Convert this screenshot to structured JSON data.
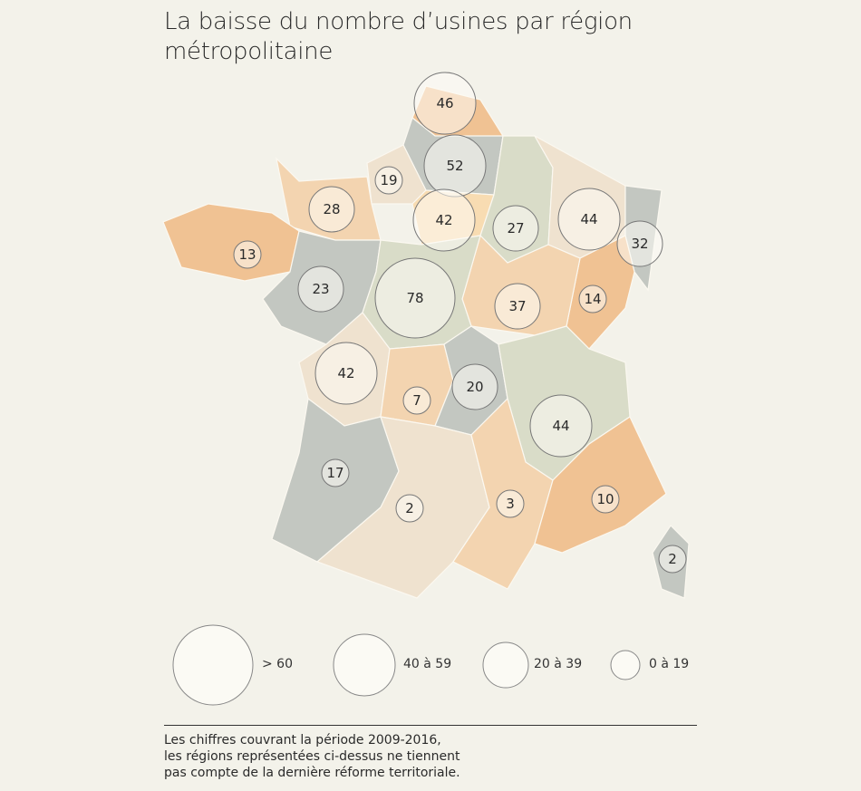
{
  "title": "La baisse du nombre d’usines par région métropolitaine",
  "palette": {
    "background": "#f3f2ea",
    "orange": "#f0c293",
    "peach": "#f3d4b0",
    "beige": "#efe2cf",
    "sage": "#d9dcc8",
    "grey": "#c3c7c1",
    "bubble_fill": "#fbfaf4"
  },
  "bubbles": [
    {
      "value": "46"
    },
    {
      "value": "52"
    },
    {
      "value": "19"
    },
    {
      "value": "28"
    },
    {
      "value": "42"
    },
    {
      "value": "27"
    },
    {
      "value": "44"
    },
    {
      "value": "32"
    },
    {
      "value": "13"
    },
    {
      "value": "23"
    },
    {
      "value": "78"
    },
    {
      "value": "37"
    },
    {
      "value": "14"
    },
    {
      "value": "42"
    },
    {
      "value": "7"
    },
    {
      "value": "20"
    },
    {
      "value": "44"
    },
    {
      "value": "17"
    },
    {
      "value": "2"
    },
    {
      "value": "3"
    },
    {
      "value": "10"
    },
    {
      "value": "2"
    }
  ],
  "legend": [
    {
      "label": "> 60"
    },
    {
      "label": "40 à 59"
    },
    {
      "label": "20 à 39"
    },
    {
      "label": "0 à 19"
    }
  ],
  "note": [
    "Les chiffres couvrant la période 2009-2016,",
    "les régions représentées ci-dessus ne tiennent",
    "pas compte de la dernière réforme territoriale."
  ]
}
